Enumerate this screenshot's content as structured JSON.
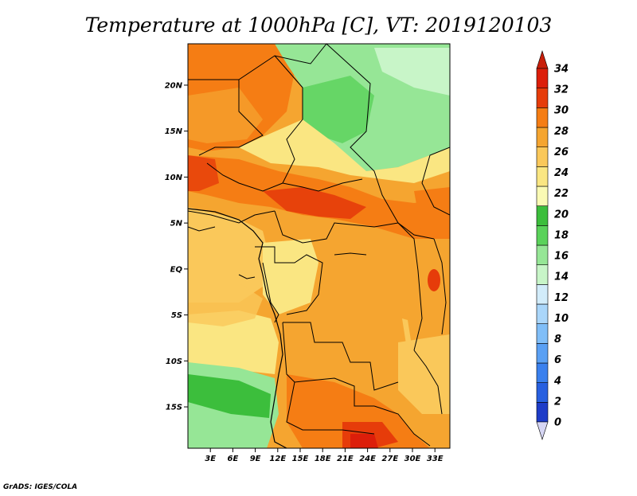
{
  "title": "Temperature at 1000hPa [C], VT: 2019120103",
  "credit": "GrADS: IGES/COLA",
  "map": {
    "lon_range": [
      0,
      35
    ],
    "lat_range": [
      -19.5,
      24.5
    ],
    "lon_ticks": [
      "3E",
      "6E",
      "9E",
      "12E",
      "15E",
      "18E",
      "21E",
      "24E",
      "27E",
      "30E",
      "33E"
    ],
    "lat_ticks": [
      "20N",
      "15N",
      "10N",
      "5N",
      "EQ",
      "5S",
      "10S",
      "15S"
    ],
    "land_color": "#f5a530"
  },
  "colorbar": {
    "levels": [
      "0",
      "2",
      "4",
      "6",
      "8",
      "10",
      "12",
      "14",
      "16",
      "18",
      "20",
      "22",
      "24",
      "26",
      "28",
      "30",
      "32",
      "34"
    ],
    "colors": [
      "#1a1a80",
      "#1e3cc8",
      "#2860e0",
      "#3a80ee",
      "#5aa0f4",
      "#80bef8",
      "#aad6fa",
      "#d2ecfa",
      "#c8f5c8",
      "#96e696",
      "#5ad25a",
      "#3cbe3c",
      "#fafab4",
      "#fae682",
      "#fac85a",
      "#f5a530",
      "#f57d14",
      "#e63c0a",
      "#dc1e0a"
    ],
    "under_color": "#d6d6f4",
    "over_color": "#c81e0a"
  }
}
